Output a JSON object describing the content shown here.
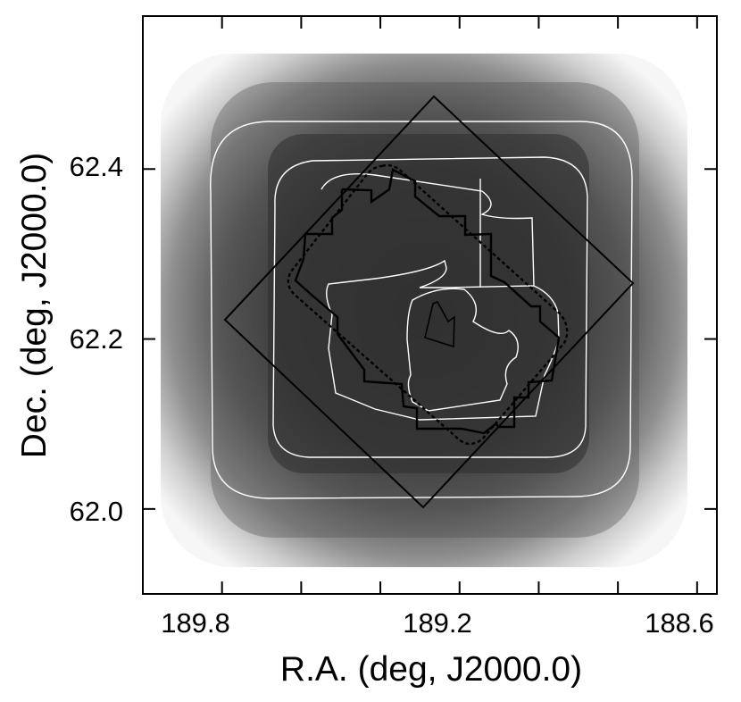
{
  "chart_data": {
    "type": "image",
    "xlabel": "R.A. (deg, J2000.0)",
    "ylabel": "Dec. (deg, J2000.0)",
    "xlim": [
      190.0,
      188.55
    ],
    "ylim": [
      61.9,
      62.58
    ],
    "x_ticks": [
      189.8,
      189.2,
      188.6
    ],
    "x_tick_labels": [
      "189.8",
      "189.2",
      "188.6"
    ],
    "x_minor_ticks": [
      189.6,
      189.4,
      189.0,
      188.8
    ],
    "y_ticks": [
      62.0,
      62.2,
      62.4
    ],
    "y_tick_labels": [
      "62.0",
      "62.2",
      "62.4"
    ],
    "grid": false,
    "colormap": "grayscale, dark = high exposure",
    "colors": {
      "axes": "#000000",
      "contours": "#ffffff",
      "background": "#ffffff"
    }
  }
}
